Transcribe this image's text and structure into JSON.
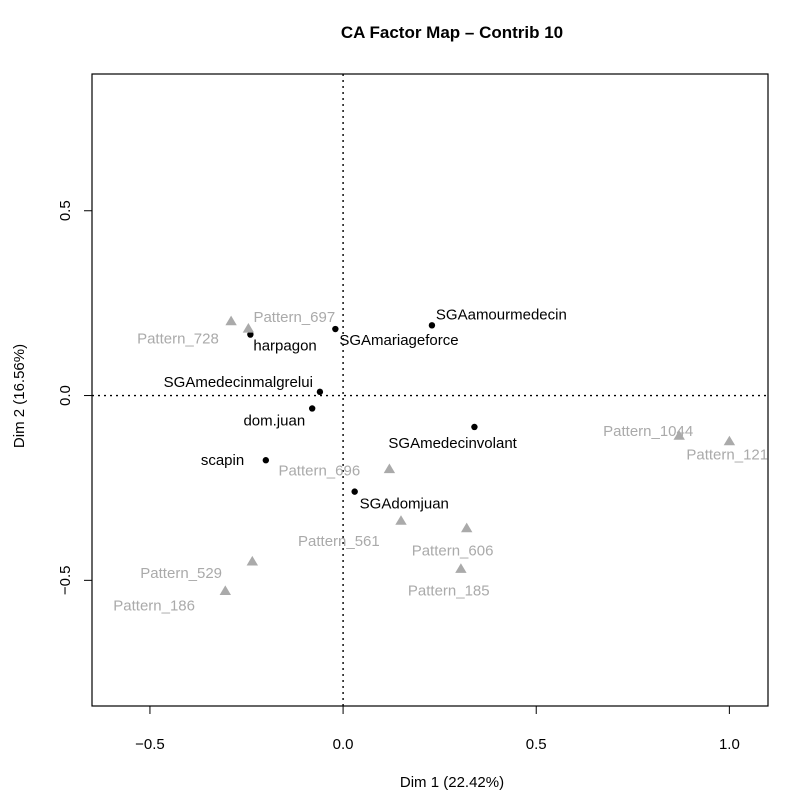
{
  "chart_data": {
    "type": "scatter",
    "title": "CA Factor Map – Contrib 10",
    "xlabel": "Dim 1 (22.42%)",
    "ylabel": "Dim 2 (16.56%)",
    "xlim": [
      -0.65,
      1.1
    ],
    "ylim": [
      -0.84,
      0.87
    ],
    "x_ticks": [
      -0.5,
      0.0,
      0.5,
      1.0
    ],
    "x_tick_labels": [
      "−0.5",
      "0.0",
      "0.5",
      "1.0"
    ],
    "y_ticks": [
      -0.5,
      0.0,
      0.5
    ],
    "y_tick_labels": [
      "−0.5",
      "0.0",
      "0.5"
    ],
    "reference_lines": {
      "x": 0,
      "y": 0,
      "style": "dotted"
    },
    "colors": {
      "rows": "#000000",
      "columns": "#aaaaaa"
    },
    "series": [
      {
        "marker": "circle",
        "color": "#000000",
        "points": [
          {
            "label": "SGAamourmedecin",
            "x": 0.23,
            "y": 0.19
          },
          {
            "label": "SGAmariageforce",
            "x": -0.02,
            "y": 0.18
          },
          {
            "label": "harpagon",
            "x": -0.24,
            "y": 0.165
          },
          {
            "label": "SGAmedecinmalgrelui",
            "x": -0.06,
            "y": 0.01
          },
          {
            "label": "dom.juan",
            "x": -0.08,
            "y": -0.035
          },
          {
            "label": "SGAmedecinvolant",
            "x": 0.34,
            "y": -0.085
          },
          {
            "label": "scapin",
            "x": -0.2,
            "y": -0.175
          },
          {
            "label": "SGAdomjuan",
            "x": 0.03,
            "y": -0.26
          }
        ]
      },
      {
        "marker": "triangle",
        "color": "#aaaaaa",
        "points": [
          {
            "label": "Pattern_697",
            "x": -0.245,
            "y": 0.18
          },
          {
            "label": "Pattern_728",
            "x": -0.29,
            "y": 0.2
          },
          {
            "label": "Pattern_1044",
            "x": 0.87,
            "y": -0.11
          },
          {
            "label": "Pattern_121",
            "x": 1.0,
            "y": -0.125
          },
          {
            "label": "Pattern_696",
            "x": 0.12,
            "y": -0.2
          },
          {
            "label": "Pattern_561",
            "x": 0.15,
            "y": -0.34
          },
          {
            "label": "Pattern_606",
            "x": 0.32,
            "y": -0.36
          },
          {
            "label": "Pattern_529",
            "x": -0.235,
            "y": -0.45
          },
          {
            "label": "Pattern_185",
            "x": 0.305,
            "y": -0.47
          },
          {
            "label": "Pattern_186",
            "x": -0.305,
            "y": -0.53
          }
        ]
      }
    ]
  }
}
